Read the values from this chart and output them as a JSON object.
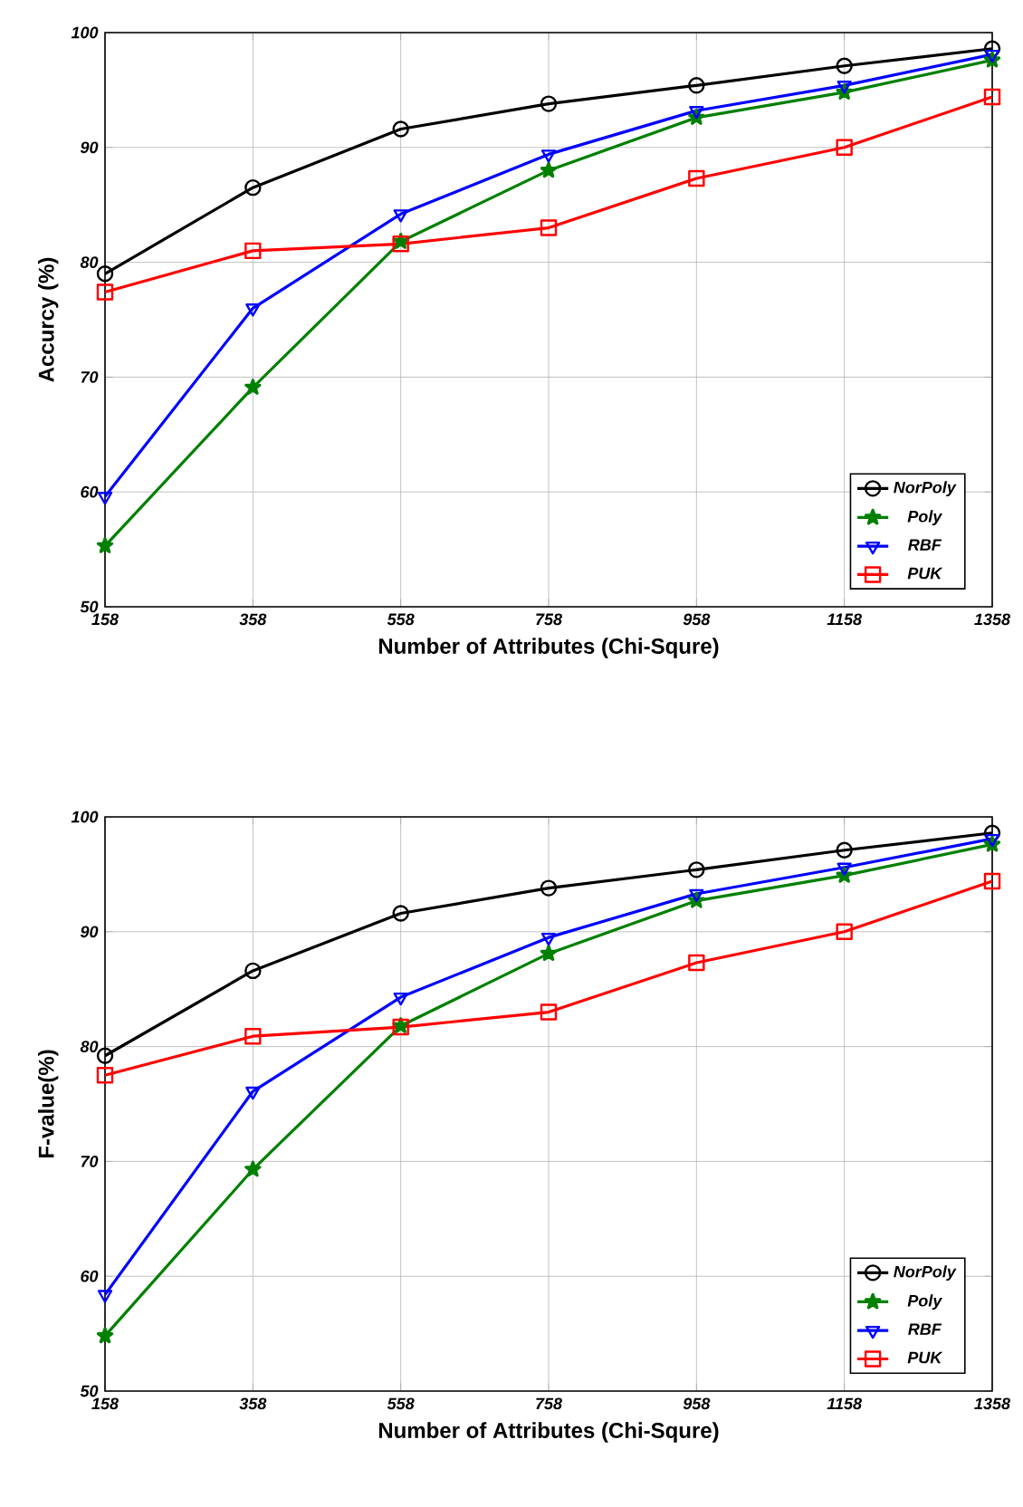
{
  "chart_data": [
    {
      "type": "line",
      "xlabel": "Number of Attributes (Chi-Squre)",
      "ylabel": "Accurcy (%)",
      "categories": [
        "158",
        "358",
        "558",
        "758",
        "958",
        "1158",
        "1358"
      ],
      "ylim": [
        50,
        100
      ],
      "yticks": [
        50,
        60,
        70,
        80,
        90,
        100
      ],
      "grid": true,
      "legend": "bottom right",
      "series": [
        {
          "name": "NorPoly",
          "color": "#000000",
          "marker": "circle",
          "values": [
            79.0,
            86.5,
            91.6,
            93.8,
            95.4,
            97.1,
            98.6
          ]
        },
        {
          "name": "Poly",
          "color": "#008000",
          "marker": "star",
          "values": [
            55.3,
            69.1,
            81.8,
            88.0,
            92.6,
            94.8,
            97.6
          ]
        },
        {
          "name": "RBF",
          "color": "#0000ff",
          "marker": "triangle",
          "values": [
            59.6,
            76.0,
            84.2,
            89.4,
            93.2,
            95.4,
            98.1
          ]
        },
        {
          "name": "PUK",
          "color": "#ff0000",
          "marker": "square",
          "values": [
            77.4,
            81.0,
            81.6,
            83.0,
            87.3,
            90.0,
            94.4
          ]
        }
      ]
    },
    {
      "type": "line",
      "xlabel": "Number of Attributes (Chi-Squre)",
      "ylabel": "F-value(%)",
      "categories": [
        "158",
        "358",
        "558",
        "758",
        "958",
        "1158",
        "1358"
      ],
      "ylim": [
        50,
        100
      ],
      "yticks": [
        50,
        60,
        70,
        80,
        90,
        100
      ],
      "grid": true,
      "legend": "bottom right",
      "series": [
        {
          "name": "NorPoly",
          "color": "#000000",
          "marker": "circle",
          "values": [
            79.2,
            86.6,
            91.6,
            93.8,
            95.4,
            97.1,
            98.6
          ]
        },
        {
          "name": "Poly",
          "color": "#008000",
          "marker": "star",
          "values": [
            54.8,
            69.3,
            81.8,
            88.1,
            92.7,
            94.9,
            97.6
          ]
        },
        {
          "name": "RBF",
          "color": "#0000ff",
          "marker": "triangle",
          "values": [
            58.4,
            76.1,
            84.3,
            89.5,
            93.3,
            95.6,
            98.1
          ]
        },
        {
          "name": "PUK",
          "color": "#ff0000",
          "marker": "square",
          "values": [
            77.5,
            80.9,
            81.7,
            83.0,
            87.3,
            90.0,
            94.4
          ]
        }
      ]
    }
  ]
}
